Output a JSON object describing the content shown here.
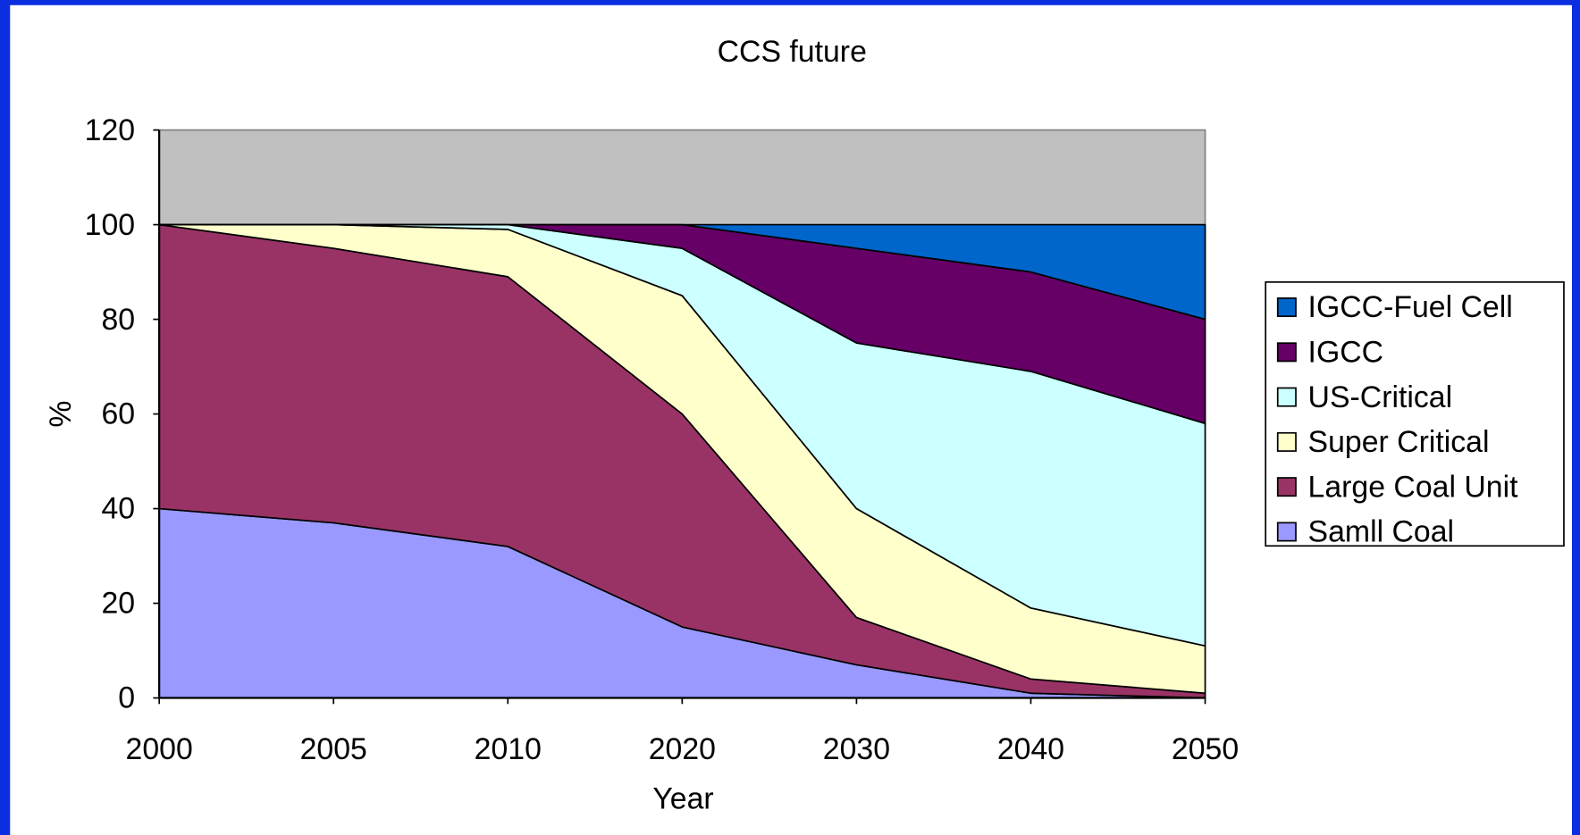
{
  "chart_data": {
    "type": "stacked_area",
    "title": "CCS future",
    "x_label": "Year",
    "y_label": "%",
    "categories": [
      "2000",
      "2005",
      "2010",
      "2020",
      "2030",
      "2040",
      "2050"
    ],
    "series": [
      {
        "name": "Samll Coal",
        "color": "#9999ff",
        "values": [
          40,
          37,
          32,
          15,
          7,
          1,
          0
        ]
      },
      {
        "name": "Large Coal Unit",
        "color": "#993366",
        "values": [
          60,
          58,
          57,
          45,
          10,
          3,
          1
        ]
      },
      {
        "name": "Super Critical",
        "color": "#ffffcc",
        "values": [
          0,
          5,
          10,
          25,
          23,
          15,
          10
        ]
      },
      {
        "name": "US-Critical",
        "color": "#ccffff",
        "values": [
          0,
          0,
          1,
          10,
          35,
          50,
          47
        ]
      },
      {
        "name": "IGCC",
        "color": "#660066",
        "values": [
          0,
          0,
          0,
          5,
          20,
          21,
          22
        ]
      },
      {
        "name": "IGCC-Fuel Cell",
        "color": "#0066cc",
        "values": [
          0,
          0,
          0,
          0,
          5,
          10,
          20
        ]
      }
    ],
    "ylim": [
      0,
      120
    ],
    "yticks": [
      0,
      20,
      40,
      60,
      80,
      100,
      120
    ],
    "plot_background": "#c0c0c0",
    "legend": "right"
  }
}
